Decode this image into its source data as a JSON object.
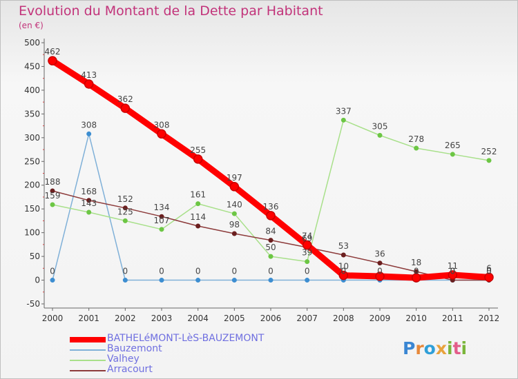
{
  "title": "Evolution du Montant de la Dette par Habitant",
  "subtitle": "(en €)",
  "logo": {
    "text": "Proxiti",
    "letter_colors": [
      "#3a86d3",
      "#e6883a",
      "#2f9fd8",
      "#e8a23c",
      "#7ab53a",
      "#e35d8a",
      "#7ab53a"
    ]
  },
  "chart_data": {
    "type": "line",
    "title": "Evolution du Montant de la Dette par Habitant",
    "subtitle": "(en €)",
    "x": [
      "2000",
      "2001",
      "2002",
      "2003",
      "2004",
      "2005",
      "2006",
      "2007",
      "2008",
      "2009",
      "2010",
      "2011",
      "2012"
    ],
    "y_ticks": [
      500,
      450,
      400,
      350,
      300,
      250,
      200,
      150,
      100,
      50,
      0,
      -50
    ],
    "ylim": [
      -50,
      500
    ],
    "grid": false,
    "legend_position": "bottom-left",
    "series": [
      {
        "name": "BATHELéMONT-LèS-BAUZEMONT",
        "color": "#ff0000",
        "marker_color": "#c80000",
        "values": [
          462,
          413,
          362,
          308,
          255,
          197,
          136,
          74,
          10,
          8,
          5,
          11,
          6
        ],
        "labels": [
          "462",
          "413",
          "362",
          "308",
          "255",
          "197",
          "136",
          "74",
          "10",
          "",
          "",
          "11",
          "6"
        ]
      },
      {
        "name": "Bauzemont",
        "color": "#7fb0d8",
        "marker_color": "#3d8ed1",
        "values": [
          0,
          308,
          0,
          0,
          0,
          0,
          0,
          0,
          0,
          0,
          0,
          0,
          0
        ],
        "labels": [
          "0",
          "308",
          "0",
          "0",
          "0",
          "0",
          "0",
          "0",
          "0",
          "0",
          "0",
          "0",
          "0"
        ]
      },
      {
        "name": "Valhey",
        "color": "#a8e08a",
        "marker_color": "#6cc644",
        "values": [
          159,
          143,
          125,
          107,
          161,
          140,
          50,
          39,
          337,
          305,
          278,
          265,
          252
        ],
        "labels": [
          "159",
          "143",
          "125",
          "107",
          "161",
          "140",
          "50",
          "39",
          "337",
          "305",
          "278",
          "265",
          "252"
        ]
      },
      {
        "name": "Arracourt",
        "color": "#8c3a3a",
        "marker_color": "#6b1f1f",
        "values": [
          188,
          168,
          152,
          134,
          114,
          98,
          84,
          69,
          53,
          36,
          18,
          0,
          0
        ],
        "labels": [
          "188",
          "168",
          "152",
          "134",
          "114",
          "98",
          "84",
          "69",
          "53",
          "36",
          "18",
          "0",
          "0"
        ]
      }
    ]
  }
}
